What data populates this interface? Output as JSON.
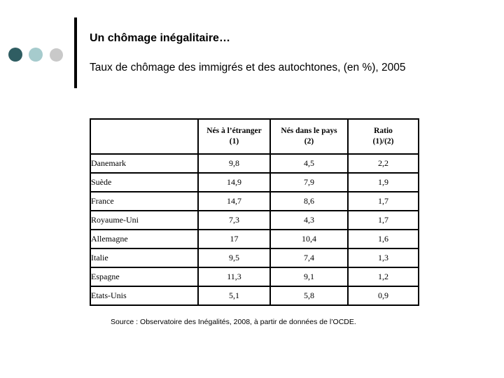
{
  "slide": {
    "title": "Un chômage inégalitaire…",
    "subtitle": "Taux de chômage des immigrés et des autochtones, (en %), 2005",
    "source_note": "Source : Observatoire des Inégalités, 2008, à partir de données de l’OCDE."
  },
  "decor": {
    "bullet_colors": [
      "#2F5D62",
      "#A6CBCD",
      "#C9C9C9"
    ],
    "bar_color": "#000000"
  },
  "table": {
    "headers": [
      {
        "line1": "",
        "line2": ""
      },
      {
        "line1": "Nés à l’étranger",
        "line2": "(1)"
      },
      {
        "line1": "Nés dans le pays",
        "line2": "(2)"
      },
      {
        "line1": "Ratio",
        "line2": "(1)/(2)"
      }
    ],
    "rows": [
      [
        "Danemark",
        "9,8",
        "4,5",
        "2,2"
      ],
      [
        "Suède",
        "14,9",
        "7,9",
        "1,9"
      ],
      [
        "France",
        "14,7",
        "8,6",
        "1,7"
      ],
      [
        "Royaume-Uni",
        "7,3",
        "4,3",
        "1,7"
      ],
      [
        "Allemagne",
        "17",
        "10,4",
        "1,6"
      ],
      [
        "Italie",
        "9,5",
        "7,4",
        "1,3"
      ],
      [
        "Espagne",
        "11,3",
        "9,1",
        "1,2"
      ],
      [
        "Etats-Unis",
        "5,1",
        "5,8",
        "0,9"
      ]
    ]
  }
}
